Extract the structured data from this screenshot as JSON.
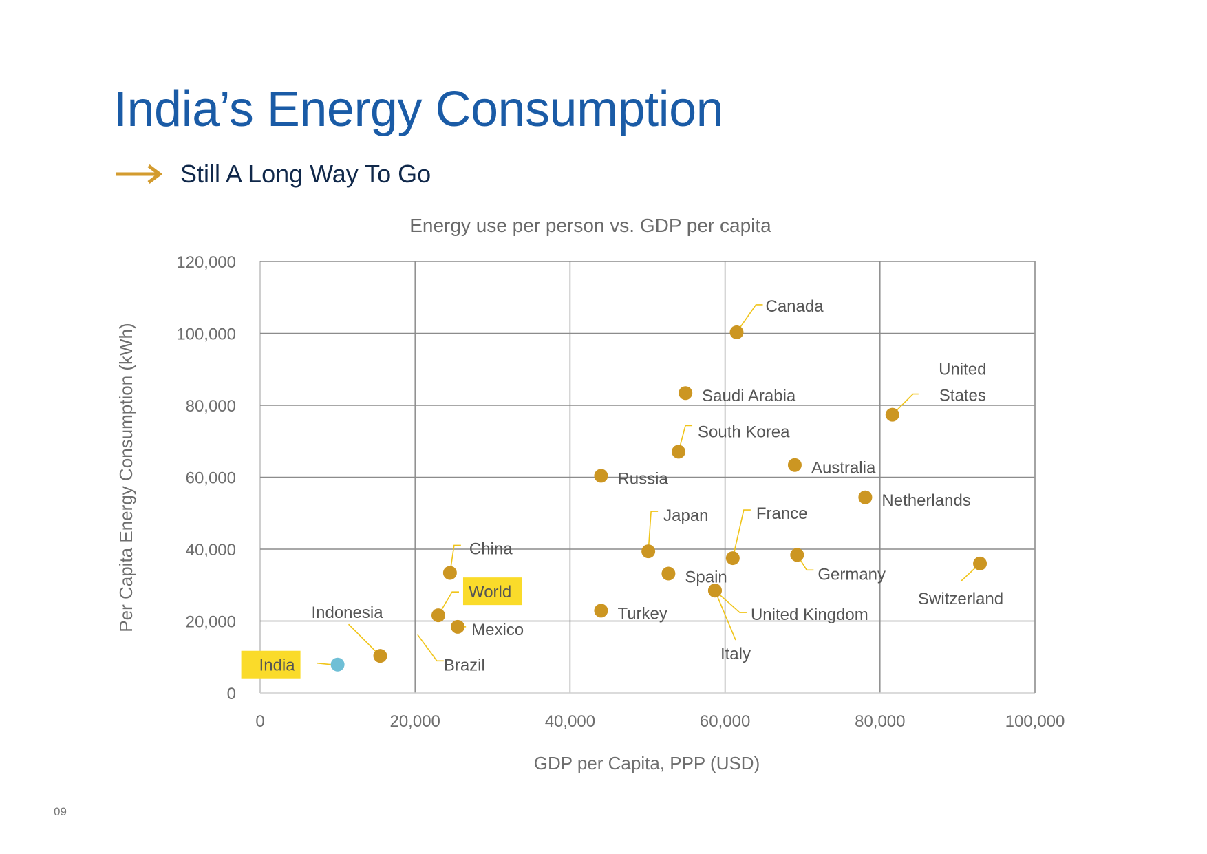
{
  "slide": {
    "title": "India’s Energy Consumption",
    "subtitle": "Still A Long Way To Go",
    "arrow_icon": "right-arrow",
    "page_number": "09",
    "colors": {
      "title": "#1a5ba6",
      "subtitle": "#10284a",
      "accent_arrow": "#d39b2e",
      "point": "#cc9622",
      "india_point": "#6fbfd6",
      "highlight": "#fadb2a",
      "leader": "#f0c419",
      "grid": "#8c8c8c"
    }
  },
  "chart_data": {
    "type": "scatter",
    "title": "Energy use per person vs. GDP per capita",
    "xlabel": "GDP per Capita, PPP (USD)",
    "ylabel": "Per Capita Energy Consumption (kWh)",
    "xlim": [
      0,
      100000
    ],
    "ylim": [
      0,
      120000
    ],
    "xticks": [
      0,
      20000,
      40000,
      60000,
      80000,
      100000
    ],
    "xtick_labels": [
      "0",
      "20,000",
      "40,000",
      "60,000",
      "80,000",
      "100,000"
    ],
    "yticks": [
      0,
      20000,
      40000,
      60000,
      80000,
      100000,
      120000
    ],
    "ytick_labels": [
      "0",
      "20,000",
      "40,000",
      "60,000",
      "80,000",
      "100,000",
      "120,000"
    ],
    "grid": true,
    "legend": "none",
    "points": [
      {
        "name": "India",
        "x": 10000,
        "y": 7900,
        "highlight": true,
        "color": "india"
      },
      {
        "name": "Indonesia",
        "x": 15500,
        "y": 10300
      },
      {
        "name": "World",
        "x": 23000,
        "y": 21600,
        "highlight": true
      },
      {
        "name": "China",
        "x": 24500,
        "y": 33400
      },
      {
        "name": "Mexico",
        "x": 25500,
        "y": 18400
      },
      {
        "name": "Brazil",
        "x": 20500,
        "y": 18500,
        "marker_visible": false
      },
      {
        "name": "Russia",
        "x": 44000,
        "y": 60400
      },
      {
        "name": "Turkey",
        "x": 44000,
        "y": 22900
      },
      {
        "name": "Japan",
        "x": 50100,
        "y": 39400
      },
      {
        "name": "Spain",
        "x": 52700,
        "y": 33200
      },
      {
        "name": "South Korea",
        "x": 54000,
        "y": 67100
      },
      {
        "name": "Saudi Arabia",
        "x": 54900,
        "y": 83400
      },
      {
        "name": "Italy",
        "x": 58700,
        "y": 28500
      },
      {
        "name": "United Kingdom",
        "x": 58700,
        "y": 28500
      },
      {
        "name": "France",
        "x": 61000,
        "y": 37500
      },
      {
        "name": "Canada",
        "x": 61500,
        "y": 100300
      },
      {
        "name": "Australia",
        "x": 69000,
        "y": 63400
      },
      {
        "name": "Germany",
        "x": 69300,
        "y": 38400
      },
      {
        "name": "Netherlands",
        "x": 78100,
        "y": 54400
      },
      {
        "name": "United States",
        "x": 81600,
        "y": 77400
      },
      {
        "name": "Switzerland",
        "x": 92900,
        "y": 36000
      }
    ]
  }
}
